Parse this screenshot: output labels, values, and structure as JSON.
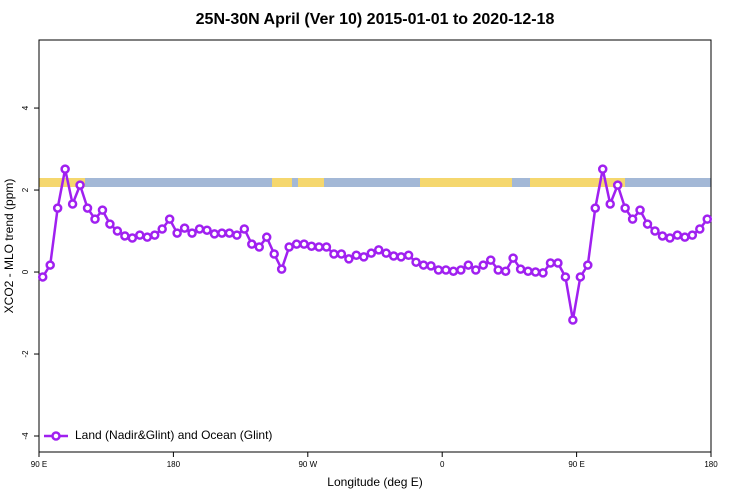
{
  "chart_data": {
    "type": "line",
    "title": "25N-30N April (Ver 10)   2015-01-01 to 2020-12-18",
    "x_label": "Longitude (deg E)",
    "y_label": "XCO2 - MLO trend (ppm)",
    "xlim": [
      90,
      540
    ],
    "ylim": [
      -4.39,
      5.66
    ],
    "xticks": [
      {
        "value": 90,
        "label": "90 E"
      },
      180,
      {
        "value": 270,
        "label": "90 W"
      },
      {
        "value": 360,
        "label": "0"
      },
      {
        "value": 450,
        "label": "90 E"
      },
      {
        "value": 540,
        "label": "180"
      }
    ],
    "yticks": [
      -4,
      -2,
      0,
      2,
      4
    ],
    "x": [
      92.5,
      97.5,
      102.5,
      107.5,
      112.5,
      117.5,
      122.5,
      127.5,
      132.5,
      137.5,
      142.5,
      147.5,
      152.5,
      157.5,
      162.5,
      167.5,
      172.5,
      177.5,
      182.5,
      187.5,
      192.5,
      197.5,
      202.5,
      207.5,
      212.5,
      217.5,
      222.5,
      227.5,
      232.5,
      237.5,
      242.5,
      247.5,
      252.5,
      257.5,
      262.5,
      267.5,
      272.5,
      277.5,
      282.5,
      287.5,
      292.5,
      297.5,
      302.5,
      307.5,
      312.5,
      317.5,
      322.5,
      327.5,
      332.5,
      337.5,
      342.5,
      347.5,
      352.5,
      357.5,
      362.5,
      367.5,
      372.5,
      377.5,
      382.5,
      387.5,
      392.5,
      397.5,
      402.5,
      407.5,
      412.5,
      417.5,
      422.5,
      427.5,
      432.5,
      437.5,
      442.5,
      447.5,
      452.5,
      457.5,
      462.5,
      467.5,
      472.5,
      477.5,
      482.5,
      487.5,
      492.5,
      497.5,
      502.5,
      507.5,
      512.5,
      517.5,
      522.5,
      527.5,
      532.5,
      537.5
    ],
    "series": [
      {
        "name": "Land (Nadir&Glint) and Ocean (Glint)",
        "color": "#a020f0",
        "values": [
          -0.12,
          0.17,
          1.56,
          2.51,
          1.66,
          2.12,
          1.56,
          1.29,
          1.51,
          1.17,
          1.0,
          0.88,
          0.83,
          0.9,
          0.85,
          0.9,
          1.05,
          1.29,
          0.95,
          1.07,
          0.95,
          1.05,
          1.02,
          0.93,
          0.95,
          0.95,
          0.9,
          1.05,
          0.68,
          0.61,
          0.85,
          0.44,
          0.07,
          0.61,
          0.68,
          0.68,
          0.63,
          0.61,
          0.61,
          0.44,
          0.44,
          0.32,
          0.41,
          0.37,
          0.46,
          0.54,
          0.46,
          0.39,
          0.37,
          0.41,
          0.24,
          0.17,
          0.15,
          0.05,
          0.05,
          0.02,
          0.05,
          0.17,
          0.05,
          0.17,
          0.29,
          0.05,
          0.02,
          0.34,
          0.07,
          0.02,
          0.0,
          -0.02,
          0.22,
          0.22,
          -0.12,
          -1.17,
          -0.12,
          0.17,
          1.56,
          2.51,
          1.66,
          2.12,
          1.56,
          1.29,
          1.51,
          1.17,
          1.0,
          0.88,
          0.83,
          0.9,
          0.85,
          0.9,
          1.05,
          1.29
        ]
      }
    ],
    "legend": "bottom-left"
  }
}
